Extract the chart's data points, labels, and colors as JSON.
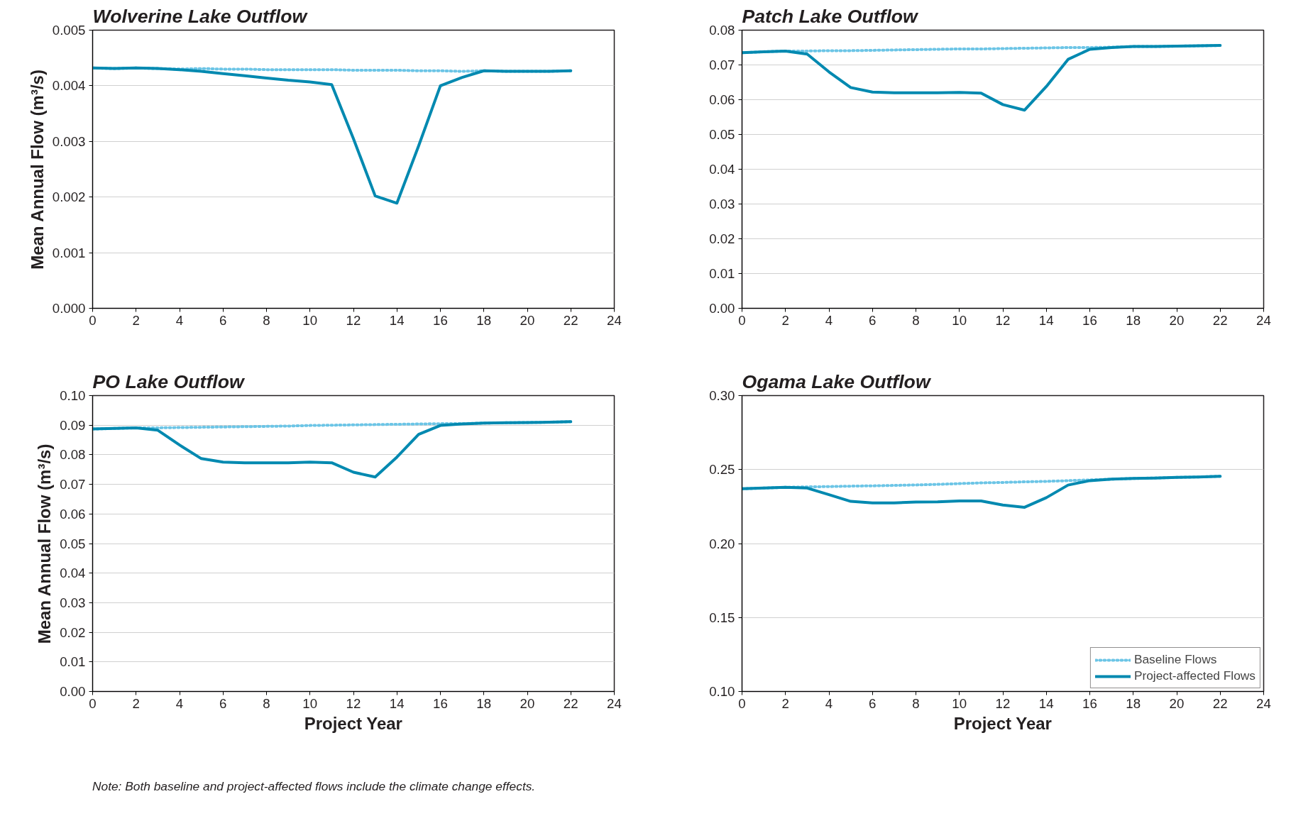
{
  "chart_data": [
    {
      "type": "line",
      "title": "Wolverine Lake Outflow",
      "ylabel": "Mean Annual Flow (m³/s)",
      "x": [
        0,
        1,
        2,
        3,
        4,
        5,
        6,
        7,
        8,
        9,
        10,
        11,
        12,
        13,
        14,
        15,
        16,
        17,
        18,
        19,
        20,
        21,
        22
      ],
      "grid": "y",
      "xlim": [
        0,
        24
      ],
      "xticks": [
        0,
        2,
        4,
        6,
        8,
        10,
        12,
        14,
        16,
        18,
        20,
        22,
        24
      ],
      "ylim": [
        0,
        0.005
      ],
      "yticks": [
        {
          "value": 0,
          "label": "0.000"
        },
        {
          "value": 0.001,
          "label": "0.001"
        },
        {
          "value": 0.002,
          "label": "0.002"
        },
        {
          "value": 0.003,
          "label": "0.003"
        },
        {
          "value": 0.004,
          "label": "0.004"
        },
        {
          "value": 0.005,
          "label": "0.005"
        }
      ],
      "series": [
        {
          "color": "#6cc5e6",
          "line_style": "dotted",
          "values": [
            0.00432,
            0.00431,
            0.00432,
            0.00431,
            0.0043,
            0.00431,
            0.0043,
            0.0043,
            0.00429,
            0.00429,
            0.00429,
            0.00429,
            0.00428,
            0.00428,
            0.00428,
            0.00427,
            0.00427,
            0.00426,
            0.00427,
            0.00426,
            0.00426,
            0.00426,
            0.00427
          ]
        },
        {
          "color": "#0089b0",
          "line_style": "solid",
          "values": [
            0.00432,
            0.00431,
            0.00432,
            0.00431,
            0.00429,
            0.00426,
            0.00422,
            0.00418,
            0.00414,
            0.0041,
            0.00407,
            0.00402,
            0.00305,
            0.00202,
            0.00189,
            0.00292,
            0.004,
            0.00415,
            0.00427,
            0.00426,
            0.00426,
            0.00426,
            0.00427
          ]
        }
      ]
    },
    {
      "type": "line",
      "title": "Patch Lake Outflow",
      "x": [
        0,
        1,
        2,
        3,
        4,
        5,
        6,
        7,
        8,
        9,
        10,
        11,
        12,
        13,
        14,
        15,
        16,
        17,
        18,
        19,
        20,
        21,
        22
      ],
      "grid": "y",
      "xlim": [
        0,
        24
      ],
      "xticks": [
        0,
        2,
        4,
        6,
        8,
        10,
        12,
        14,
        16,
        18,
        20,
        22,
        24
      ],
      "ylim": [
        0,
        0.08
      ],
      "yticks": [
        {
          "value": 0,
          "label": "0.00"
        },
        {
          "value": 0.01,
          "label": "0.01"
        },
        {
          "value": 0.02,
          "label": "0.02"
        },
        {
          "value": 0.03,
          "label": "0.03"
        },
        {
          "value": 0.04,
          "label": "0.04"
        },
        {
          "value": 0.05,
          "label": "0.05"
        },
        {
          "value": 0.06,
          "label": "0.06"
        },
        {
          "value": 0.07,
          "label": "0.07"
        },
        {
          "value": 0.08,
          "label": "0.08"
        }
      ],
      "series": [
        {
          "color": "#6cc5e6",
          "line_style": "dotted",
          "values": [
            0.0735,
            0.0738,
            0.074,
            0.074,
            0.0741,
            0.0741,
            0.0742,
            0.0743,
            0.0744,
            0.0745,
            0.0746,
            0.0746,
            0.0747,
            0.0748,
            0.0749,
            0.075,
            0.075,
            0.0751,
            0.0753,
            0.0753,
            0.0754,
            0.0755,
            0.0756
          ]
        },
        {
          "color": "#0089b0",
          "line_style": "solid",
          "values": [
            0.0735,
            0.0738,
            0.074,
            0.0731,
            0.068,
            0.0635,
            0.0622,
            0.062,
            0.062,
            0.062,
            0.0621,
            0.0619,
            0.0586,
            0.057,
            0.0638,
            0.0716,
            0.0745,
            0.075,
            0.0753,
            0.0753,
            0.0754,
            0.0755,
            0.0756
          ]
        }
      ]
    },
    {
      "type": "line",
      "title": "PO Lake Outflow",
      "ylabel": "Mean Annual Flow (m³/s)",
      "xlabel": "Project Year",
      "annotations": [
        "Note: Both baseline and project-affected flows include the climate change effects."
      ],
      "x": [
        0,
        1,
        2,
        3,
        4,
        5,
        6,
        7,
        8,
        9,
        10,
        11,
        12,
        13,
        14,
        15,
        16,
        17,
        18,
        19,
        20,
        21,
        22
      ],
      "grid": "y",
      "xlim": [
        0,
        24
      ],
      "xticks": [
        0,
        2,
        4,
        6,
        8,
        10,
        12,
        14,
        16,
        18,
        20,
        22,
        24
      ],
      "ylim": [
        0,
        0.1
      ],
      "yticks": [
        {
          "value": 0,
          "label": "0.00"
        },
        {
          "value": 0.01,
          "label": "0.01"
        },
        {
          "value": 0.02,
          "label": "0.02"
        },
        {
          "value": 0.03,
          "label": "0.03"
        },
        {
          "value": 0.04,
          "label": "0.04"
        },
        {
          "value": 0.05,
          "label": "0.05"
        },
        {
          "value": 0.06,
          "label": "0.06"
        },
        {
          "value": 0.07,
          "label": "0.07"
        },
        {
          "value": 0.08,
          "label": "0.08"
        },
        {
          "value": 0.09,
          "label": "0.09"
        },
        {
          "value": 0.1,
          "label": "0.10"
        }
      ],
      "series": [
        {
          "color": "#6cc5e6",
          "line_style": "dotted",
          "values": [
            0.0887,
            0.0889,
            0.0891,
            0.0891,
            0.0892,
            0.0893,
            0.0894,
            0.0895,
            0.0896,
            0.0897,
            0.0899,
            0.09,
            0.0901,
            0.0902,
            0.0903,
            0.0904,
            0.0905,
            0.0905,
            0.0907,
            0.0908,
            0.0909,
            0.091,
            0.0912
          ]
        },
        {
          "color": "#0089b0",
          "line_style": "solid",
          "values": [
            0.0887,
            0.0889,
            0.0891,
            0.0883,
            0.0833,
            0.0787,
            0.0775,
            0.0773,
            0.0773,
            0.0773,
            0.0775,
            0.0773,
            0.0741,
            0.0725,
            0.0792,
            0.0869,
            0.0899,
            0.0904,
            0.0907,
            0.0908,
            0.0909,
            0.091,
            0.0912
          ]
        }
      ]
    },
    {
      "type": "line",
      "title": "Ogama Lake Outflow",
      "xlabel": "Project Year",
      "legend": "bottom right",
      "x": [
        0,
        1,
        2,
        3,
        4,
        5,
        6,
        7,
        8,
        9,
        10,
        11,
        12,
        13,
        14,
        15,
        16,
        17,
        18,
        19,
        20,
        21,
        22
      ],
      "grid": "y",
      "xlim": [
        0,
        24
      ],
      "xticks": [
        0,
        2,
        4,
        6,
        8,
        10,
        12,
        14,
        16,
        18,
        20,
        22,
        24
      ],
      "ylim": [
        0.1,
        0.3
      ],
      "yticks": [
        {
          "value": 0.1,
          "label": "0.10"
        },
        {
          "value": 0.15,
          "label": "0.15"
        },
        {
          "value": 0.2,
          "label": "0.20"
        },
        {
          "value": 0.25,
          "label": "0.25"
        },
        {
          "value": 0.3,
          "label": "0.30"
        }
      ],
      "series": [
        {
          "name": "Baseline Flows",
          "color": "#6cc5e6",
          "line_style": "dotted",
          "values": [
            0.237,
            0.2375,
            0.238,
            0.2383,
            0.2385,
            0.2388,
            0.239,
            0.2393,
            0.2396,
            0.24,
            0.2405,
            0.241,
            0.2413,
            0.2417,
            0.242,
            0.2425,
            0.243,
            0.2435,
            0.244,
            0.2443,
            0.2447,
            0.245,
            0.2455
          ]
        },
        {
          "name": "Project-affected Flows",
          "color": "#0089b0",
          "line_style": "solid",
          "values": [
            0.237,
            0.2375,
            0.238,
            0.2375,
            0.233,
            0.2285,
            0.2275,
            0.2275,
            0.228,
            0.2282,
            0.2288,
            0.2288,
            0.226,
            0.2245,
            0.231,
            0.2395,
            0.2425,
            0.2435,
            0.244,
            0.2443,
            0.2447,
            0.245,
            0.2455
          ]
        }
      ]
    }
  ]
}
